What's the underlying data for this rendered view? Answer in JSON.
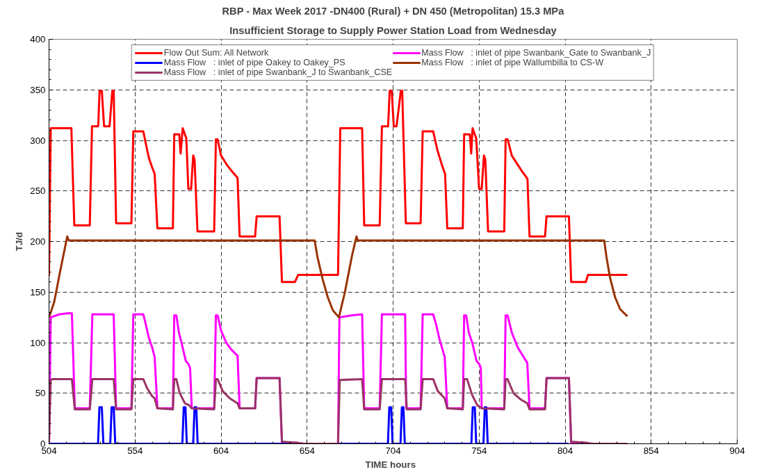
{
  "chart_data": {
    "type": "line",
    "title": "RBP - Max Week 2017 -DN400 (Rural) + DN 450 (Metropolitan) 15.3 MPa",
    "subtitle": "Insufficient Storage to Supply Power Station Load from Wednesday",
    "xlabel": "TIME   hours",
    "ylabel": "TJ/d",
    "xlim": [
      504,
      904
    ],
    "xticks": [
      504,
      554,
      604,
      654,
      704,
      754,
      804,
      854,
      904
    ],
    "ylim": [
      0,
      400
    ],
    "yticks": [
      0,
      50,
      100,
      150,
      200,
      250,
      300,
      350,
      400
    ],
    "grid": true,
    "legend": "top",
    "line_style": "solid",
    "marker": "none",
    "series": [
      {
        "name": "Flow Out Sum: All Network",
        "color": "#ff0000",
        "x": [
          504,
          505,
          517,
          518.7,
          527.7,
          529,
          532.6,
          533.4,
          534.7,
          536,
          539.2,
          540.8,
          541.6,
          543,
          551.9,
          553,
          558.8,
          560.5,
          562,
          564,
          565.4,
          567,
          576,
          576.8,
          579.7,
          580.5,
          581.7,
          583.8,
          585,
          586.6,
          587.8,
          588.6,
          590.3,
          600,
          601,
          602,
          604,
          607.7,
          611,
          613.6,
          614.8,
          623.8,
          624.7,
          638,
          639.4,
          647,
          648.8,
          672,
          673.3,
          686,
          687.2,
          696.2,
          697.5,
          701.1,
          702,
          703.2,
          704.4,
          706,
          708.5,
          709.3,
          711.4,
          720,
          721.2,
          727.3,
          729.8,
          732.5,
          734.2,
          735.5,
          744.5,
          745.3,
          748.6,
          749.4,
          750.2,
          752.3,
          754,
          755.5,
          756.8,
          757.6,
          759.2,
          768.6,
          769.4,
          770.6,
          773,
          778.7,
          782.1,
          783.3,
          792.3,
          793.2,
          806.2,
          807.5,
          816,
          817.3,
          840.2
        ],
        "values": [
          166,
          312,
          312,
          216,
          216,
          314,
          314,
          349,
          349,
          314,
          314,
          349,
          349,
          218,
          218,
          309,
          309,
          295,
          283,
          273,
          267,
          213,
          213,
          306,
          306,
          287,
          312,
          302,
          252,
          252,
          285,
          281,
          210,
          210,
          301,
          301,
          285,
          275,
          268,
          263,
          205,
          205,
          225,
          225,
          160,
          160,
          167,
          167,
          312,
          312,
          216,
          216,
          314,
          314,
          349,
          349,
          314,
          314,
          349,
          349,
          218,
          218,
          309,
          309,
          290,
          275,
          267,
          213,
          213,
          306,
          306,
          287,
          312,
          302,
          252,
          252,
          285,
          281,
          210,
          210,
          301,
          301,
          285,
          270,
          262,
          205,
          205,
          225,
          225,
          160,
          160,
          167,
          167
        ]
      },
      {
        "name": "Mass Flow   : inlet of pipe Swanbank_Gate to Swanbank_J",
        "color": "#ff00ff",
        "x": [
          504,
          505,
          510,
          515,
          517.3,
          519,
          527.7,
          529.2,
          541.6,
          543,
          551.9,
          553,
          558.8,
          560,
          562,
          564,
          565.4,
          567,
          576,
          576.8,
          578,
          579.5,
          581,
          583.5,
          585,
          586,
          587,
          600,
          601,
          602,
          604,
          607,
          610,
          613.6,
          614.8,
          623.8,
          624.7,
          638,
          639.4,
          648,
          652,
          672,
          672.8,
          680,
          686,
          687.2,
          696.2,
          697.5,
          711,
          711.6,
          720,
          721.2,
          727.3,
          729,
          731,
          734,
          735.5,
          744.5,
          745.3,
          746.5,
          748,
          750,
          752.5,
          754,
          755,
          755.5,
          768.6,
          769.4,
          770.5,
          773,
          776.5,
          782,
          783.3,
          792.3,
          793.2,
          806.2,
          807.5,
          816
        ],
        "values": [
          0,
          125,
          128,
          129,
          129,
          35,
          35,
          128,
          128,
          35,
          35,
          128,
          128,
          120,
          105,
          95,
          86,
          35,
          35,
          127,
          127,
          110,
          100,
          82,
          79,
          75,
          35,
          35,
          127,
          127,
          112,
          100,
          93,
          87,
          35,
          35,
          65,
          65,
          1,
          1,
          0,
          0,
          125,
          127,
          128,
          35,
          35,
          128,
          128,
          35,
          35,
          128,
          128,
          118,
          103,
          86,
          35,
          35,
          127,
          127,
          110,
          100,
          82,
          79,
          75,
          35,
          35,
          127,
          127,
          110,
          95,
          80,
          35,
          35,
          65,
          65,
          1,
          1
        ]
      },
      {
        "name": "Mass Flow   : inlet of pipe Oakey to Oakey_PS",
        "color": "#0000ff",
        "x": [
          504,
          532.5,
          533.3,
          534.7,
          535.6,
          539.6,
          540.4,
          541.6,
          542.5,
          581.5,
          582.3,
          583.3,
          584.1,
          587.8,
          588.6,
          589.6,
          590.4,
          701,
          701.8,
          702.9,
          703.7,
          708.3,
          709.1,
          710,
          710.8,
          749.5,
          750.3,
          751.5,
          752.3,
          756.5,
          757.3,
          758.2,
          759,
          806
        ],
        "values": [
          0,
          0,
          36,
          36,
          0,
          0,
          36,
          36,
          0,
          0,
          36,
          36,
          0,
          0,
          36,
          36,
          0,
          0,
          36,
          36,
          0,
          0,
          36,
          36,
          0,
          0,
          36,
          36,
          0,
          0,
          36,
          36,
          0,
          0
        ]
      },
      {
        "name": "Mass Flow   : inlet of pipe Wallumbilla to CS-W",
        "color": "#993300",
        "x": [
          504,
          507,
          511,
          514.6,
          515.5,
          658.4,
          660,
          663,
          666,
          669,
          672.5,
          676,
          680,
          682.7,
          683.5,
          826.7,
          828,
          830,
          833,
          836,
          840.2
        ],
        "values": [
          125,
          140,
          175,
          205,
          201,
          201,
          185,
          163,
          145,
          132,
          125,
          150,
          185,
          205,
          201,
          201,
          185,
          165,
          145,
          133,
          126
        ]
      },
      {
        "name": "Mass Flow   : inlet of pipe Swanbank_J to Swanbank_CSE",
        "color": "#993366",
        "x": [
          504,
          505,
          506,
          517.3,
          519,
          527.7,
          529.2,
          541.6,
          543,
          551.9,
          553,
          558.8,
          561,
          564,
          565.4,
          567,
          576,
          576.8,
          578,
          580,
          583,
          585.5,
          587,
          600,
          601,
          602,
          605,
          609,
          613.6,
          614.8,
          623.8,
          624.7,
          638,
          639.4,
          648,
          652,
          672,
          673,
          686,
          687.2,
          696.2,
          697.5,
          711,
          712,
          720,
          721.2,
          727.3,
          730,
          734,
          735.5,
          744.5,
          745.3,
          747,
          750,
          753,
          755.5,
          768.6,
          769.4,
          770.5,
          774,
          778,
          782,
          783.3,
          792.3,
          793.2,
          806.2,
          807.5,
          816,
          820,
          840.2
        ],
        "values": [
          0,
          63,
          64,
          64,
          34,
          34,
          64,
          64,
          34,
          34,
          64,
          64,
          55,
          47,
          45,
          35,
          34,
          64,
          64,
          50,
          40,
          38,
          35,
          34,
          64,
          64,
          52,
          45,
          40,
          35,
          35,
          65,
          65,
          2,
          1,
          0,
          0,
          63,
          64,
          34,
          34,
          64,
          64,
          34,
          34,
          64,
          64,
          52,
          45,
          35,
          34,
          64,
          64,
          48,
          38,
          35,
          34,
          64,
          64,
          50,
          44,
          40,
          34,
          34,
          65,
          65,
          2,
          1,
          0,
          0
        ]
      }
    ]
  }
}
